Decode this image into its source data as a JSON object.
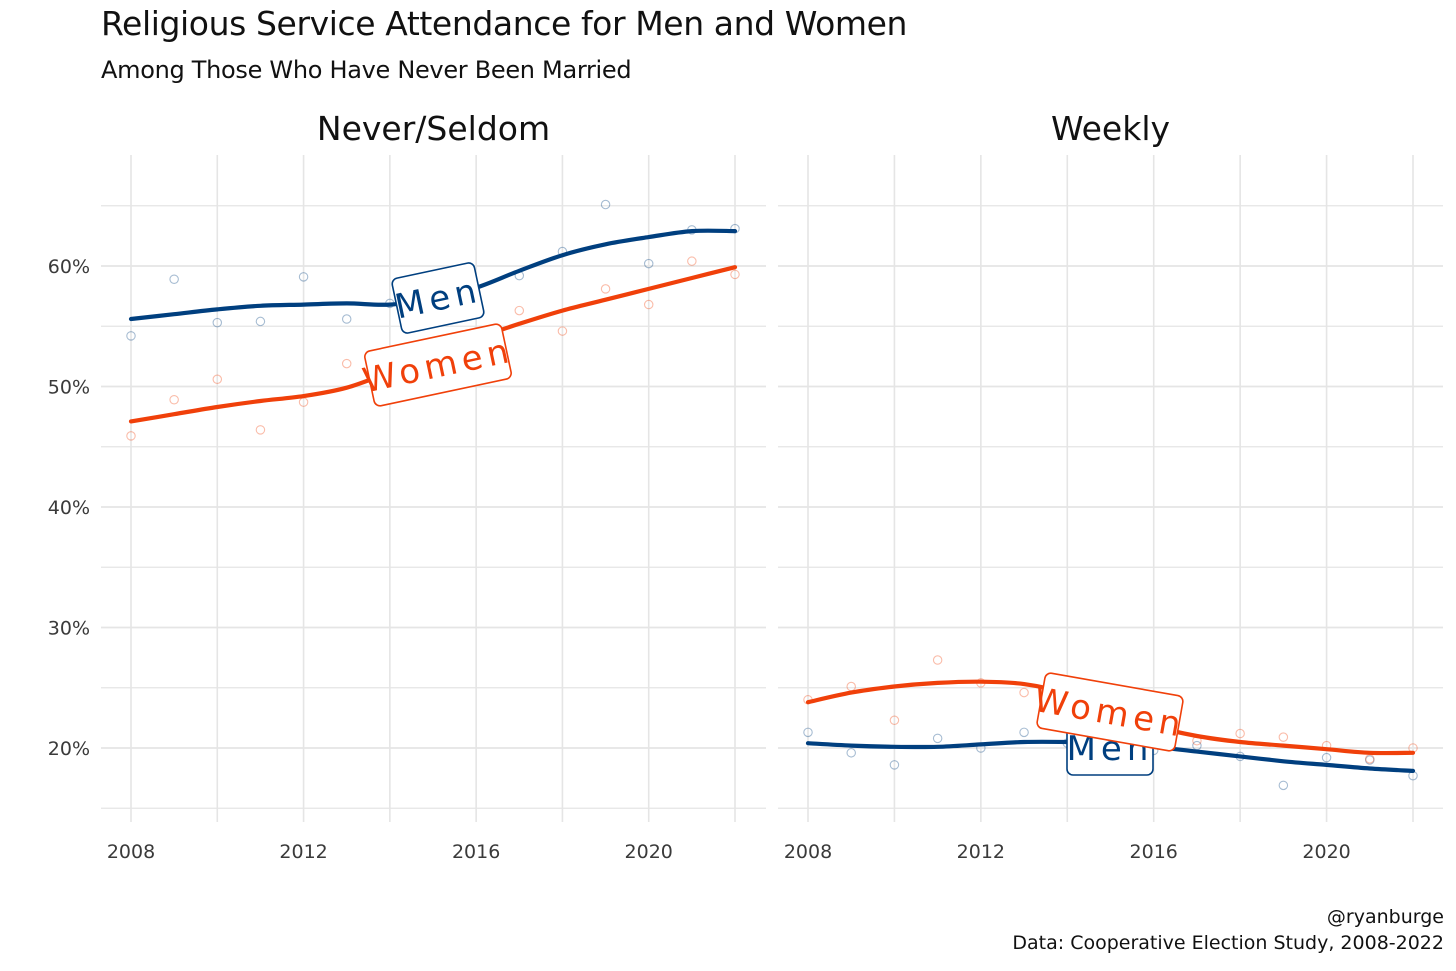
{
  "title": "Religious Service Attendance for Men and Women",
  "subtitle": "Among Those Who Have Never Been Married",
  "caption": {
    "handle": "@ryanburge",
    "source": "Data: Cooperative Election Study, 2008-2022"
  },
  "colors": {
    "men": "#003f7f",
    "women": "#f0400a",
    "grid": "#e5e5e5"
  },
  "chart_data": [
    {
      "type": "scatter",
      "facet": "Never/Seldom",
      "title": "Never/Seldom",
      "x": [
        2008,
        2009,
        2010,
        2011,
        2012,
        2013,
        2014,
        2015,
        2016,
        2017,
        2018,
        2019,
        2020,
        2021,
        2022
      ],
      "xticks": [
        "2008",
        "2012",
        "2016",
        "2020"
      ],
      "yticks": [
        "20%",
        "30%",
        "40%",
        "50%",
        "60%"
      ],
      "ylim": [
        14.5,
        67
      ],
      "grid": true,
      "series": [
        {
          "name": "Men",
          "key": "men",
          "values": [
            54.2,
            58.9,
            55.3,
            55.4,
            59.1,
            55.6,
            56.9,
            56.8,
            57.2,
            59.2,
            61.2,
            65.1,
            60.2,
            63.0,
            63.1
          ],
          "trend": [
            55.6,
            56.0,
            56.4,
            56.7,
            56.8,
            56.9,
            56.8,
            57.3,
            58.2,
            59.6,
            60.9,
            61.8,
            62.4,
            62.9,
            62.9
          ]
        },
        {
          "name": "Women",
          "key": "women",
          "values": [
            45.9,
            48.9,
            50.6,
            46.4,
            48.7,
            51.9,
            51.5,
            50.4,
            54.5,
            56.3,
            54.6,
            58.1,
            56.8,
            60.4,
            59.3
          ],
          "trend": [
            47.1,
            47.7,
            48.3,
            48.8,
            49.2,
            49.9,
            51.2,
            52.7,
            54.0,
            55.2,
            56.3,
            57.2,
            58.1,
            59.0,
            59.9
          ]
        }
      ]
    },
    {
      "type": "scatter",
      "facet": "Weekly",
      "title": "Weekly",
      "x": [
        2008,
        2009,
        2010,
        2011,
        2012,
        2013,
        2014,
        2015,
        2016,
        2017,
        2018,
        2019,
        2020,
        2021,
        2022
      ],
      "xticks": [
        "2008",
        "2012",
        "2016",
        "2020"
      ],
      "ylim": [
        14.5,
        67
      ],
      "grid": true,
      "series": [
        {
          "name": "Men",
          "key": "men",
          "values": [
            21.3,
            19.6,
            18.6,
            20.8,
            20.0,
            21.3,
            20.4,
            20.3,
            19.8,
            20.2,
            19.3,
            16.9,
            19.2,
            19.0,
            17.7
          ],
          "trend": [
            20.4,
            20.2,
            20.1,
            20.1,
            20.3,
            20.5,
            20.5,
            20.4,
            20.1,
            19.7,
            19.3,
            18.9,
            18.6,
            18.3,
            18.1
          ]
        },
        {
          "name": "Women",
          "key": "women",
          "values": [
            24.0,
            25.1,
            22.3,
            27.3,
            25.4,
            24.6,
            24.0,
            23.2,
            21.4,
            20.6,
            21.2,
            20.9,
            20.2,
            19.1,
            20.0
          ],
          "trend": [
            23.8,
            24.6,
            25.1,
            25.4,
            25.5,
            25.3,
            24.5,
            23.0,
            21.8,
            21.0,
            20.5,
            20.2,
            19.9,
            19.6,
            19.6
          ]
        }
      ]
    }
  ]
}
